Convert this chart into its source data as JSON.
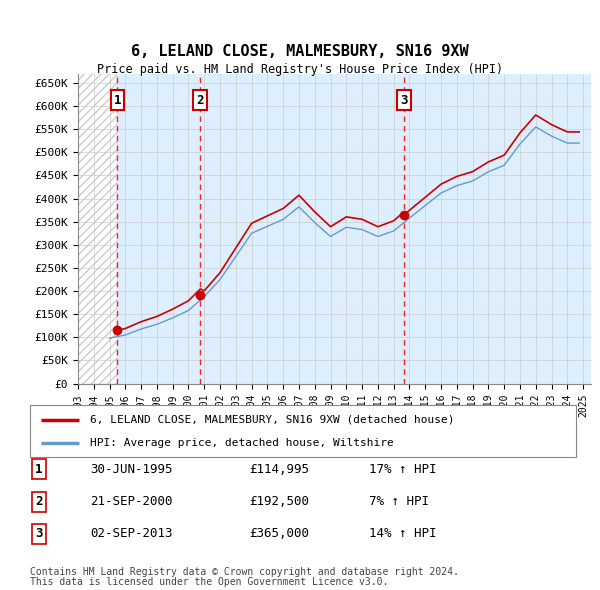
{
  "title": "6, LELAND CLOSE, MALMESBURY, SN16 9XW",
  "subtitle": "Price paid vs. HM Land Registry's House Price Index (HPI)",
  "ylim": [
    0,
    670000
  ],
  "yticks": [
    0,
    50000,
    100000,
    150000,
    200000,
    250000,
    300000,
    350000,
    400000,
    450000,
    500000,
    550000,
    600000,
    650000
  ],
  "ytick_labels": [
    "£0",
    "£50K",
    "£100K",
    "£150K",
    "£200K",
    "£250K",
    "£300K",
    "£350K",
    "£400K",
    "£450K",
    "£500K",
    "£550K",
    "£600K",
    "£650K"
  ],
  "xlim_start": 1993.0,
  "xlim_end": 2025.5,
  "hatch_end": 1995.5,
  "transactions": [
    {
      "label": "1",
      "date_str": "30-JUN-1995",
      "date_x": 1995.5,
      "price": 114995,
      "pct": "17%",
      "direction": "↑"
    },
    {
      "label": "2",
      "date_str": "21-SEP-2000",
      "date_x": 2000.75,
      "price": 192500,
      "pct": "7%",
      "direction": "↑"
    },
    {
      "label": "3",
      "date_str": "02-SEP-2013",
      "date_x": 2013.67,
      "price": 365000,
      "pct": "14%",
      "direction": "↑"
    }
  ],
  "legend_line1": "6, LELAND CLOSE, MALMESBURY, SN16 9XW (detached house)",
  "legend_line2": "HPI: Average price, detached house, Wiltshire",
  "footer1": "Contains HM Land Registry data © Crown copyright and database right 2024.",
  "footer2": "This data is licensed under the Open Government Licence v3.0.",
  "line_color_red": "#cc0000",
  "line_color_blue": "#6699cc",
  "grid_color": "#cccccc",
  "hatch_color": "#cccccc",
  "bg_color": "#ddeeff",
  "transaction_box_color": "#cc0000",
  "xtick_years": [
    1993,
    1994,
    1995,
    1996,
    1997,
    1998,
    1999,
    2000,
    2001,
    2002,
    2003,
    2004,
    2005,
    2006,
    2007,
    2008,
    2009,
    2010,
    2011,
    2012,
    2013,
    2014,
    2015,
    2016,
    2017,
    2018,
    2019,
    2020,
    2021,
    2022,
    2023,
    2024,
    2025
  ]
}
